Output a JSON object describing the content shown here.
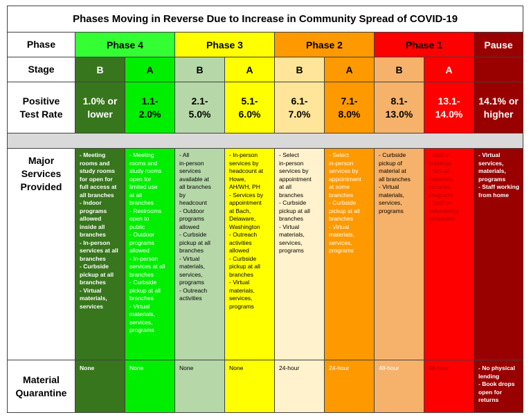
{
  "title": "Phases Moving in Reverse Due to Increase in Community Spread of COVID-19",
  "row_labels": {
    "phase": "Phase",
    "stage": "Stage",
    "rate": "Positive\nTest Rate",
    "services": "Major\nServices\nProvided",
    "quarantine": "Material\nQuarantine"
  },
  "phases": [
    {
      "name": "Phase 4",
      "color": "#33ff33"
    },
    {
      "name": "Phase 3",
      "color": "#ffff00"
    },
    {
      "name": "Phase 2",
      "color": "#ff9900"
    },
    {
      "name": "Phase 1",
      "color": "#ff0000"
    },
    {
      "name": "Pause",
      "color": "#990000"
    }
  ],
  "columns": [
    {
      "stage": "B",
      "rate": "1.0% or\nlower",
      "services": "- Meeting\nrooms and\nstudy rooms\nfor open for\nfull access at\nall branches\n- Indoor\nprograms\nallowed\ninside all\nbranches\n- In-person\nservices at all\nbranches\n- Curbside\npickup at all\nbranches\n- Virtual\nmaterials,\nservices",
      "quarantine": "None",
      "color": "#38761d"
    },
    {
      "stage": "A",
      "rate": "1.1-\n2.0%",
      "services": "- Meeting\nrooms and\nstudy rooms\nopen for\nlimited use\nat all\nbranches\n- Restrooms\nopen to\npublic\n- Outdoor\nprograms\nallowed\n- In-person\nservices at all\nbranches\n- Curbside\npickup at all\nbranches\n- Virtual\nmaterials,\nservices,\nprograms",
      "quarantine": "None",
      "color": "#00ee00"
    },
    {
      "stage": "B",
      "rate": "2.1-\n5.0%",
      "services": "- All\nin-person\nservices\navailable at\nall branches\nby\nheadcount\n- Outdoor\nprograms\nallowed\n- Curbside\npickup at all\nbranches\n- Virtual\nmaterials,\nservices,\nprograms\n- Outreach\nactivities",
      "quarantine": "None",
      "color": "#b6d7a8"
    },
    {
      "stage": "A",
      "rate": "5.1-\n6.0%",
      "services": "-  In-person\nservices by\nheadcount at\nHowe,\nAH/WH, PH\n- Services by\nappointment\nat Bach,\nDelaware,\nWashington\n- Outreach\nactivities\nallowed\n- Curbside\npickup at all\nbranches\n- Virtual\nmaterials,\nservices,\nprograms",
      "quarantine": "None",
      "color": "#ffff00"
    },
    {
      "stage": "B",
      "rate": "6.1-\n7.0%",
      "services": "- Select\nin-person\nservices by\nappointment\nat all\nbranches\n- Curbside\npickup at all\nbranches\n- Virtual\nmaterials,\nservices,\nprograms",
      "quarantine": "24-hour",
      "color": "#ffe599",
      "services_color": "#fff2cc"
    },
    {
      "stage": "A",
      "rate": "7.1-\n8.0%",
      "services": "- Select\nin-person\nservices by\nappointment\nat some\nbranches\n- Curbside\npickup at all\nbranches\n- Virtual\nmaterials,\nservices,\nprograms",
      "quarantine": "24-hour",
      "color": "#ff9900"
    },
    {
      "stage": "B",
      "rate": "8.1-\n13.0%",
      "services": "-  Curbside\npickup of\nmaterial at\nall branches\n- Virtual\nmaterials,\nservices,\nprograms",
      "quarantine": "48-hour",
      "color": "#f6b26b"
    },
    {
      "stage": "A",
      "rate": "13.1-\n14.0%",
      "services": "- Staff in\nbuildings\n- Virtual\nmaterials,\nservices,\nprograms\n- Staff on\nredundancy\nschedules",
      "quarantine": "48-hour",
      "color": "#ff0000"
    }
  ],
  "pause": {
    "rate": "14.1% or\nhigher",
    "services": "- Virtual\nservices,\nmaterials,\nprograms\n- Staff working\nfrom home",
    "quarantine": "- No physical\nlending\n- Book drops\nopen for\nreturns",
    "color": "#990000"
  }
}
